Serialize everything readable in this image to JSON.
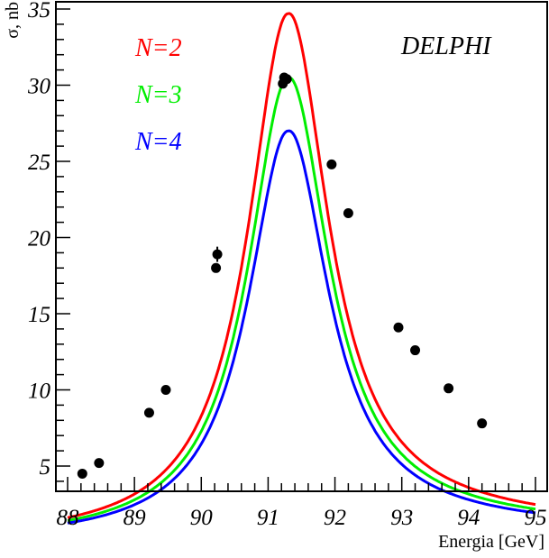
{
  "chart_data": {
    "type": "line",
    "title": "",
    "experiment_label": "DELPHI",
    "xlabel": "Energia [GeV]",
    "ylabel": "σ, nb",
    "xlim": [
      87.83,
      95.18
    ],
    "ylim": [
      3.4,
      35.5
    ],
    "x_ticks": [
      88,
      89,
      90,
      91,
      92,
      93,
      94,
      95
    ],
    "x_tick_labels": [
      "88",
      "89",
      "90",
      "91",
      "92",
      "93",
      "94",
      "95"
    ],
    "x_minor_step": 0.2,
    "y_ticks": [
      5,
      10,
      15,
      20,
      25,
      30,
      35
    ],
    "y_tick_labels": [
      "5",
      "10",
      "15",
      "20",
      "25",
      "30",
      "35"
    ],
    "y_minor_step": 1,
    "grid": false,
    "legend_position": "top-left",
    "curve_x_range": [
      88,
      95
    ],
    "series": [
      {
        "name": "N=2",
        "label": "N=2",
        "color": "#ff0000",
        "peak_x": 91.3,
        "peak_y": 34.7,
        "width": 2.55,
        "tail_95": 6.5
      },
      {
        "name": "N=3",
        "label": "N=3",
        "color": "#00ee00",
        "peak_x": 91.3,
        "peak_y": 30.5,
        "width": 2.55,
        "tail_95": 6.2
      },
      {
        "name": "N=4",
        "label": "N=4",
        "color": "#0000ff",
        "peak_x": 91.3,
        "peak_y": 27.0,
        "width": 2.55,
        "tail_95": 5.9
      }
    ],
    "data_points": {
      "name": "DELPHI data",
      "color": "#000000",
      "points": [
        {
          "x": 88.22,
          "y": 4.5,
          "err": 0.1
        },
        {
          "x": 88.47,
          "y": 5.2,
          "err": 0.1
        },
        {
          "x": 89.22,
          "y": 8.5,
          "err": 0.15
        },
        {
          "x": 89.47,
          "y": 10.0,
          "err": 0.15
        },
        {
          "x": 90.22,
          "y": 18.0,
          "err": 0.3
        },
        {
          "x": 90.24,
          "y": 18.9,
          "err": 0.5
        },
        {
          "x": 91.22,
          "y": 30.1,
          "err": 0.2
        },
        {
          "x": 91.24,
          "y": 30.5,
          "err": 0.2
        },
        {
          "x": 91.28,
          "y": 30.4,
          "err": 0.2
        },
        {
          "x": 91.95,
          "y": 24.8,
          "err": 0.2
        },
        {
          "x": 92.2,
          "y": 21.6,
          "err": 0.3
        },
        {
          "x": 92.95,
          "y": 14.1,
          "err": 0.2
        },
        {
          "x": 93.2,
          "y": 12.6,
          "err": 0.2
        },
        {
          "x": 93.7,
          "y": 10.1,
          "err": 0.2
        },
        {
          "x": 94.2,
          "y": 7.8,
          "err": 0.2
        }
      ]
    }
  }
}
